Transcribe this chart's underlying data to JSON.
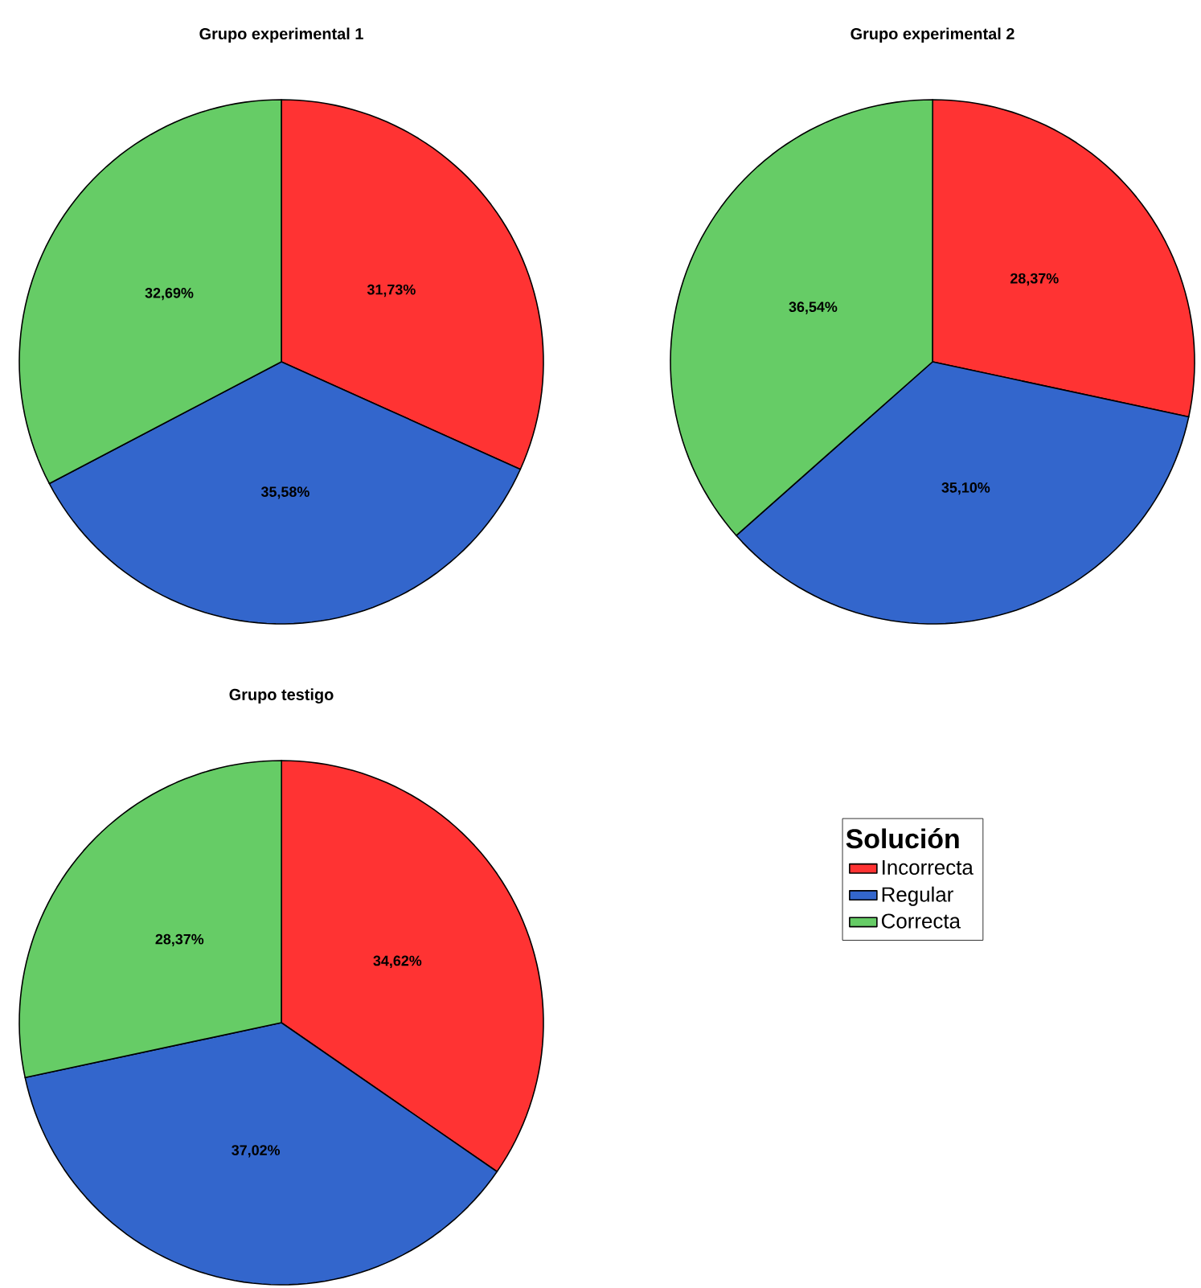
{
  "chart_data": [
    {
      "type": "pie",
      "title": "Grupo experimental 1",
      "categories": [
        null,
        null,
        null
      ],
      "values": [
        31.73,
        35.58,
        32.69
      ],
      "colors": [
        "#ff3333",
        "#3366cc",
        "#66cc66"
      ],
      "value_labels": [
        "31,73%",
        "35,58%",
        "32,69%"
      ]
    },
    {
      "type": "pie",
      "title": "Grupo experimental 2",
      "categories": [
        null,
        null,
        null
      ],
      "values": [
        28.37,
        35.1,
        36.54
      ],
      "colors": [
        "#ff3333",
        "#3366cc",
        "#66cc66"
      ],
      "value_labels": [
        "28,37%",
        "35,10%",
        "36,54%"
      ]
    },
    {
      "type": "pie",
      "title": "Grupo testigo",
      "categories": [
        "Incorrecta",
        "Regular",
        "Correcta"
      ],
      "values": [
        34.62,
        37.02,
        28.37
      ],
      "colors": [
        "#ff3333",
        "#3366cc",
        "#66cc66"
      ],
      "value_labels": [
        "34,62%",
        "37,02%",
        "28,37%"
      ],
      "legend": "right",
      "legend_title": "Solución"
    }
  ]
}
